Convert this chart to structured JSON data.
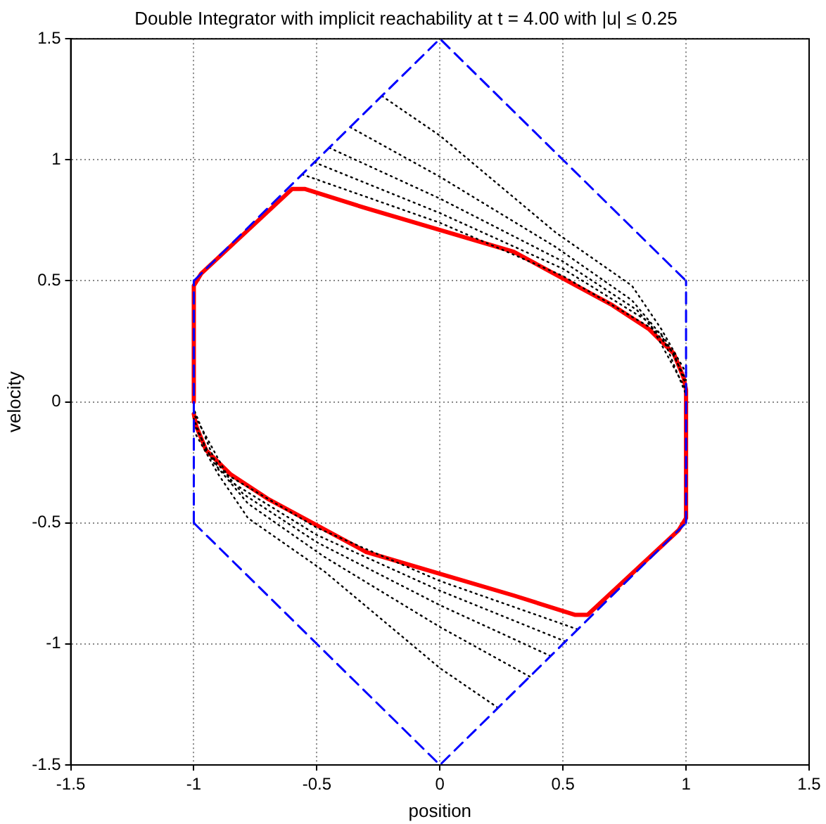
{
  "chart_data": {
    "type": "line",
    "title": "Double Integrator with implicit reachability at t = 4.00 with |u| ≤ 0.25",
    "xlabel": "position",
    "ylabel": "velocity",
    "xlim": [
      -1.5,
      1.5
    ],
    "ylim": [
      -1.5,
      1.5
    ],
    "xticks": [
      -1.5,
      -1,
      -0.5,
      0,
      0.5,
      1,
      1.5
    ],
    "yticks": [
      -1.5,
      -1,
      -0.5,
      0,
      0.5,
      1,
      1.5
    ],
    "grid": true,
    "marker": "none",
    "series": [
      {
        "color": "#0000ff",
        "line_style": "dashed",
        "x": [
          -1,
          0,
          1
        ],
        "values": [
          0.5,
          1.5,
          0.5
        ]
      },
      {
        "color": "#0000ff",
        "line_style": "dashed",
        "x": [
          -1,
          0,
          1
        ],
        "values": [
          -0.5,
          -1.5,
          -0.5
        ]
      },
      {
        "color": "#0000ff",
        "line_style": "dashed",
        "x": [
          -1,
          -1
        ],
        "values": [
          -0.5,
          0.5
        ]
      },
      {
        "color": "#0000ff",
        "line_style": "dashed",
        "x": [
          1,
          1
        ],
        "values": [
          -0.5,
          0.5
        ]
      },
      {
        "color": "#000000",
        "line_style": "dotted",
        "x": [
          -0.236,
          0,
          0.47,
          0.78,
          0.9,
          1
        ],
        "values": [
          1.264,
          1.1,
          0.7,
          0.48,
          0.3,
          0.12
        ]
      },
      {
        "color": "#000000",
        "line_style": "dotted",
        "x": [
          -0.365,
          0,
          0.47,
          0.78,
          0.92,
          1
        ],
        "values": [
          1.135,
          0.93,
          0.64,
          0.42,
          0.25,
          0.09
        ]
      },
      {
        "color": "#000000",
        "line_style": "dotted",
        "x": [
          -0.45,
          0,
          0.5,
          0.8,
          0.95,
          1
        ],
        "values": [
          1.05,
          0.84,
          0.58,
          0.38,
          0.2,
          0.07
        ]
      },
      {
        "color": "#000000",
        "line_style": "dotted",
        "x": [
          -0.51,
          0,
          0.5,
          0.85,
          1
        ],
        "values": [
          0.99,
          0.78,
          0.55,
          0.33,
          0.05
        ]
      },
      {
        "color": "#000000",
        "line_style": "dotted",
        "x": [
          -0.56,
          0,
          0.5,
          0.9,
          1
        ],
        "values": [
          0.94,
          0.74,
          0.52,
          0.28,
          0.03
        ]
      },
      {
        "color": "#000000",
        "line_style": "dotted",
        "x": [
          0.236,
          0,
          -0.47,
          -0.78,
          -0.9,
          -1
        ],
        "values": [
          -1.264,
          -1.1,
          -0.7,
          -0.48,
          -0.3,
          -0.12
        ]
      },
      {
        "color": "#000000",
        "line_style": "dotted",
        "x": [
          0.365,
          0,
          -0.47,
          -0.78,
          -0.92,
          -1
        ],
        "values": [
          -1.135,
          -0.93,
          -0.64,
          -0.42,
          -0.25,
          -0.09
        ]
      },
      {
        "color": "#000000",
        "line_style": "dotted",
        "x": [
          0.45,
          0,
          -0.5,
          -0.8,
          -0.95,
          -1
        ],
        "values": [
          -1.05,
          -0.84,
          -0.58,
          -0.38,
          -0.2,
          -0.07
        ]
      },
      {
        "color": "#000000",
        "line_style": "dotted",
        "x": [
          0.51,
          0,
          -0.5,
          -0.85,
          -1
        ],
        "values": [
          -0.99,
          -0.78,
          -0.55,
          -0.33,
          -0.05
        ]
      },
      {
        "color": "#000000",
        "line_style": "dotted",
        "x": [
          0.56,
          0,
          -0.5,
          -0.9,
          -1
        ],
        "values": [
          -0.94,
          -0.74,
          -0.52,
          -0.28,
          -0.03
        ]
      },
      {
        "color": "#ff0000",
        "line_style": "solid",
        "x": [
          -1,
          -1,
          -0.97,
          -0.6,
          -0.55,
          -0.3,
          0,
          0.3,
          0.5,
          0.7,
          0.85,
          0.95,
          0.99,
          1,
          1,
          0.97,
          0.6,
          0.55,
          0.3,
          0,
          -0.3,
          -0.5,
          -0.7,
          -0.85,
          -0.95,
          -0.99,
          -1
        ],
        "values": [
          0,
          0.48,
          0.53,
          0.88,
          0.88,
          0.8,
          0.71,
          0.62,
          0.51,
          0.4,
          0.3,
          0.2,
          0.1,
          0.05,
          -0.48,
          -0.53,
          -0.88,
          -0.88,
          -0.8,
          -0.71,
          -0.62,
          -0.51,
          -0.4,
          -0.3,
          -0.2,
          -0.1,
          -0.05
        ]
      }
    ]
  }
}
